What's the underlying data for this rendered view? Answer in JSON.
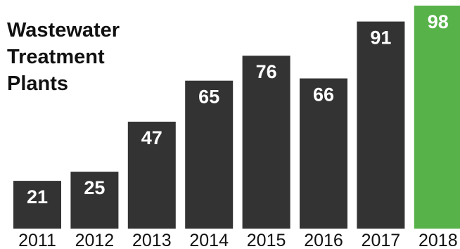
{
  "chart_data": {
    "type": "bar",
    "title_lines": [
      "Wastewater",
      "Treatment",
      "Plants"
    ],
    "categories": [
      "2011",
      "2012",
      "2013",
      "2014",
      "2015",
      "2016",
      "2017",
      "2018"
    ],
    "values": [
      21,
      25,
      47,
      65,
      76,
      66,
      91,
      98
    ],
    "bar_colors": [
      "#333333",
      "#333333",
      "#333333",
      "#333333",
      "#333333",
      "#333333",
      "#333333",
      "#57b24a"
    ],
    "label_color": "#ffffff",
    "ylim": [
      0,
      100
    ],
    "grid": false,
    "legend": "none",
    "xlabel": "",
    "ylabel": ""
  }
}
